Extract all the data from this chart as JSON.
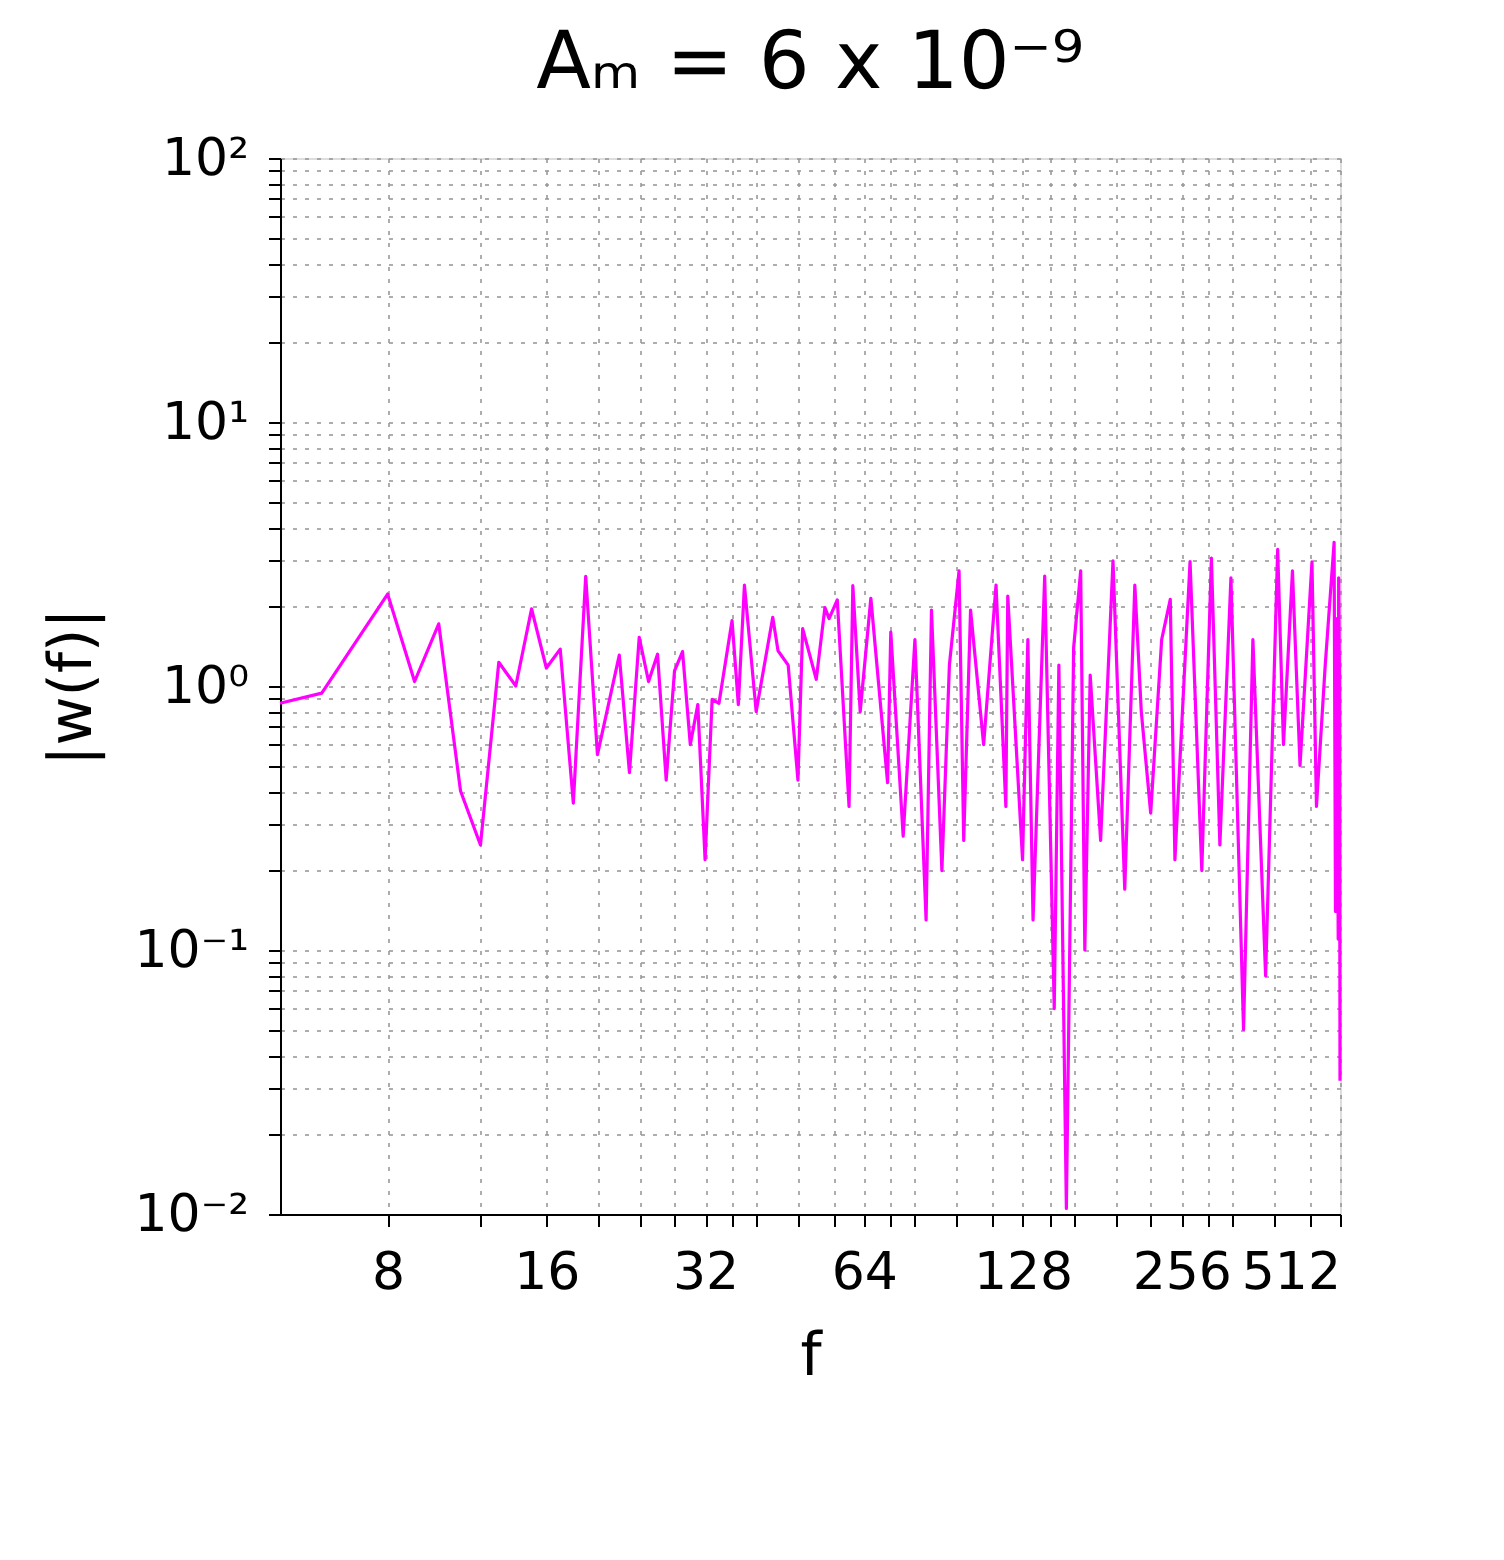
{
  "chart_data": {
    "type": "line",
    "title": "Aₘ = 6 x 10⁻⁹",
    "xlabel": "f",
    "ylabel": "|w(f)|",
    "log": "xy",
    "grid": true,
    "marker": "none",
    "line_style": "solid",
    "xlim": [
      5,
      512
    ],
    "ylim": [
      0.01,
      100
    ],
    "xticks": [
      8,
      {
        "value": 12,
        "label": null
      },
      16,
      {
        "value": 20,
        "label": null
      },
      {
        "value": 24,
        "label": null
      },
      {
        "value": 28,
        "label": null
      },
      32,
      {
        "value": 36,
        "label": null
      },
      {
        "value": 40,
        "label": null
      },
      {
        "value": 48,
        "label": null
      },
      {
        "value": 56,
        "label": null
      },
      64,
      {
        "value": 72,
        "label": null
      },
      {
        "value": 80,
        "label": null
      },
      {
        "value": 96,
        "label": null
      },
      {
        "value": 112,
        "label": null
      },
      128,
      {
        "value": 144,
        "label": null
      },
      {
        "value": 160,
        "label": null
      },
      {
        "value": 192,
        "label": null
      },
      {
        "value": 224,
        "label": null
      },
      256,
      {
        "value": 288,
        "label": null
      },
      {
        "value": 320,
        "label": null
      },
      {
        "value": 384,
        "label": null
      },
      {
        "value": 448,
        "label": null
      },
      512
    ],
    "yticks": [
      {
        "value": 0.01,
        "label": "10⁻²"
      },
      {
        "value": 0.02,
        "label": null
      },
      {
        "value": 0.03,
        "label": null
      },
      {
        "value": 0.04,
        "label": null
      },
      {
        "value": 0.05,
        "label": null
      },
      {
        "value": 0.06,
        "label": null
      },
      {
        "value": 0.07,
        "label": null
      },
      {
        "value": 0.08,
        "label": null
      },
      {
        "value": 0.09,
        "label": null
      },
      {
        "value": 0.1,
        "label": "10⁻¹"
      },
      {
        "value": 0.2,
        "label": null
      },
      {
        "value": 0.3,
        "label": null
      },
      {
        "value": 0.4,
        "label": null
      },
      {
        "value": 0.5,
        "label": null
      },
      {
        "value": 0.6,
        "label": null
      },
      {
        "value": 0.7,
        "label": null
      },
      {
        "value": 0.8,
        "label": null
      },
      {
        "value": 0.9,
        "label": null
      },
      {
        "value": 1,
        "label": "10⁰"
      },
      {
        "value": 2,
        "label": null
      },
      {
        "value": 3,
        "label": null
      },
      {
        "value": 4,
        "label": null
      },
      {
        "value": 5,
        "label": null
      },
      {
        "value": 6,
        "label": null
      },
      {
        "value": 7,
        "label": null
      },
      {
        "value": 8,
        "label": null
      },
      {
        "value": 9,
        "label": null
      },
      {
        "value": 10,
        "label": "10¹"
      },
      {
        "value": 20,
        "label": null
      },
      {
        "value": 30,
        "label": null
      },
      {
        "value": 40,
        "label": null
      },
      {
        "value": 50,
        "label": null
      },
      {
        "value": 60,
        "label": null
      },
      {
        "value": 70,
        "label": null
      },
      {
        "value": 80,
        "label": null
      },
      {
        "value": 90,
        "label": null
      },
      {
        "value": 100,
        "label": "10²"
      }
    ],
    "x": [
      5,
      6,
      8,
      9,
      10,
      11,
      12,
      13,
      14,
      15,
      16,
      17,
      18,
      19,
      20,
      22,
      23,
      24,
      25,
      26,
      27,
      28,
      29,
      30,
      31,
      32,
      33,
      34,
      36,
      37,
      38,
      40,
      43,
      44,
      46,
      48,
      49,
      52,
      54,
      55,
      57,
      60,
      61,
      63,
      66,
      71,
      72,
      76,
      80,
      84,
      86,
      90,
      93,
      97,
      99,
      102,
      108,
      114,
      119,
      120,
      128,
      131,
      134,
      141,
      147,
      150,
      155,
      160,
      165,
      168,
      172,
      180,
      190,
      200,
      209,
      215,
      224,
      235,
      244,
      249,
      266,
      280,
      292,
      303,
      318,
      336,
      350,
      370,
      390,
      400,
      416,
      430,
      453,
      462,
      480,
      499,
      502,
      505,
      508,
      509,
      511,
      512
    ],
    "series": [
      {
        "color": "#ff00ff",
        "values": [
          0.86,
          0.94,
          2.23,
          1.04,
          1.72,
          0.4,
          0.25,
          1.23,
          1.0,
          1.96,
          1.17,
          1.38,
          0.36,
          2.6,
          0.55,
          1.31,
          0.47,
          1.53,
          1.04,
          1.32,
          0.44,
          1.14,
          1.35,
          0.6,
          0.85,
          0.22,
          0.89,
          0.86,
          1.77,
          0.85,
          2.41,
          0.8,
          1.82,
          1.36,
          1.2,
          0.44,
          1.65,
          1.06,
          1.98,
          1.8,
          2.12,
          0.35,
          2.4,
          0.8,
          2.15,
          0.43,
          1.6,
          0.27,
          1.5,
          0.13,
          1.94,
          0.2,
          1.2,
          2.73,
          0.26,
          1.94,
          0.6,
          2.41,
          0.35,
          2.19,
          0.22,
          1.5,
          0.13,
          2.61,
          0.06,
          1.2,
          0.0105,
          1.4,
          2.73,
          0.1,
          1.1,
          0.26,
          2.98,
          0.17,
          2.41,
          0.8,
          0.33,
          1.5,
          2.13,
          0.22,
          2.96,
          0.2,
          3.05,
          0.25,
          2.57,
          0.05,
          1.5,
          0.08,
          3.29,
          0.6,
          2.73,
          0.5,
          2.95,
          0.35,
          1.2,
          3.5,
          0.14,
          1.8,
          0.11,
          2.57,
          1.0,
          0.032
        ]
      }
    ]
  }
}
